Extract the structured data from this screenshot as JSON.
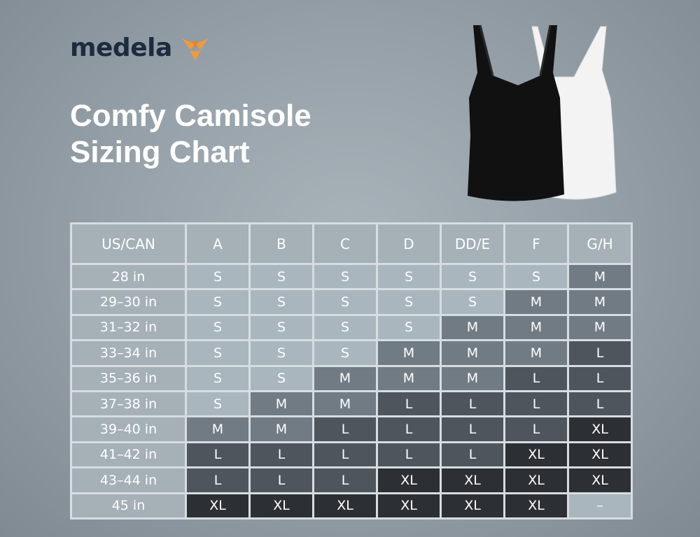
{
  "brand": {
    "name": "medela",
    "logo_color": "#f29a3b",
    "text_color": "#1d2b3f"
  },
  "title": {
    "line1": "Comfy Camisole",
    "line2": "Sizing Chart"
  },
  "product_image": {
    "description_icon": "camisole-icon",
    "colors": [
      "#111111",
      "#f3f3f3"
    ]
  },
  "table": {
    "corner_header": "US/CAN",
    "columns": [
      "A",
      "B",
      "C",
      "D",
      "DD/E",
      "F",
      "G/H"
    ],
    "rows": [
      {
        "label": "28 in",
        "values": [
          "S",
          "S",
          "S",
          "S",
          "S",
          "S",
          "M"
        ]
      },
      {
        "label": "29–30 in",
        "values": [
          "S",
          "S",
          "S",
          "S",
          "S",
          "M",
          "M"
        ]
      },
      {
        "label": "31–32 in",
        "values": [
          "S",
          "S",
          "S",
          "S",
          "M",
          "M",
          "M"
        ]
      },
      {
        "label": "33–34 in",
        "values": [
          "S",
          "S",
          "S",
          "M",
          "M",
          "M",
          "L"
        ]
      },
      {
        "label": "35–36 in",
        "values": [
          "S",
          "S",
          "M",
          "M",
          "M",
          "L",
          "L"
        ]
      },
      {
        "label": "37–38 in",
        "values": [
          "S",
          "M",
          "M",
          "L",
          "L",
          "L",
          "L"
        ]
      },
      {
        "label": "39–40 in",
        "values": [
          "M",
          "M",
          "L",
          "L",
          "L",
          "L",
          "XL"
        ]
      },
      {
        "label": "41–42 in",
        "values": [
          "L",
          "L",
          "L",
          "L",
          "L",
          "XL",
          "XL"
        ]
      },
      {
        "label": "43–44 in",
        "values": [
          "L",
          "L",
          "L",
          "XL",
          "XL",
          "XL",
          "XL"
        ]
      },
      {
        "label": "45 in",
        "values": [
          "XL",
          "XL",
          "XL",
          "XL",
          "XL",
          "XL",
          "–"
        ]
      }
    ],
    "size_colors": {
      "S": "#a9b6bd",
      "M": "#707b84",
      "L": "#4e555c",
      "XL": "#2c3034"
    }
  }
}
